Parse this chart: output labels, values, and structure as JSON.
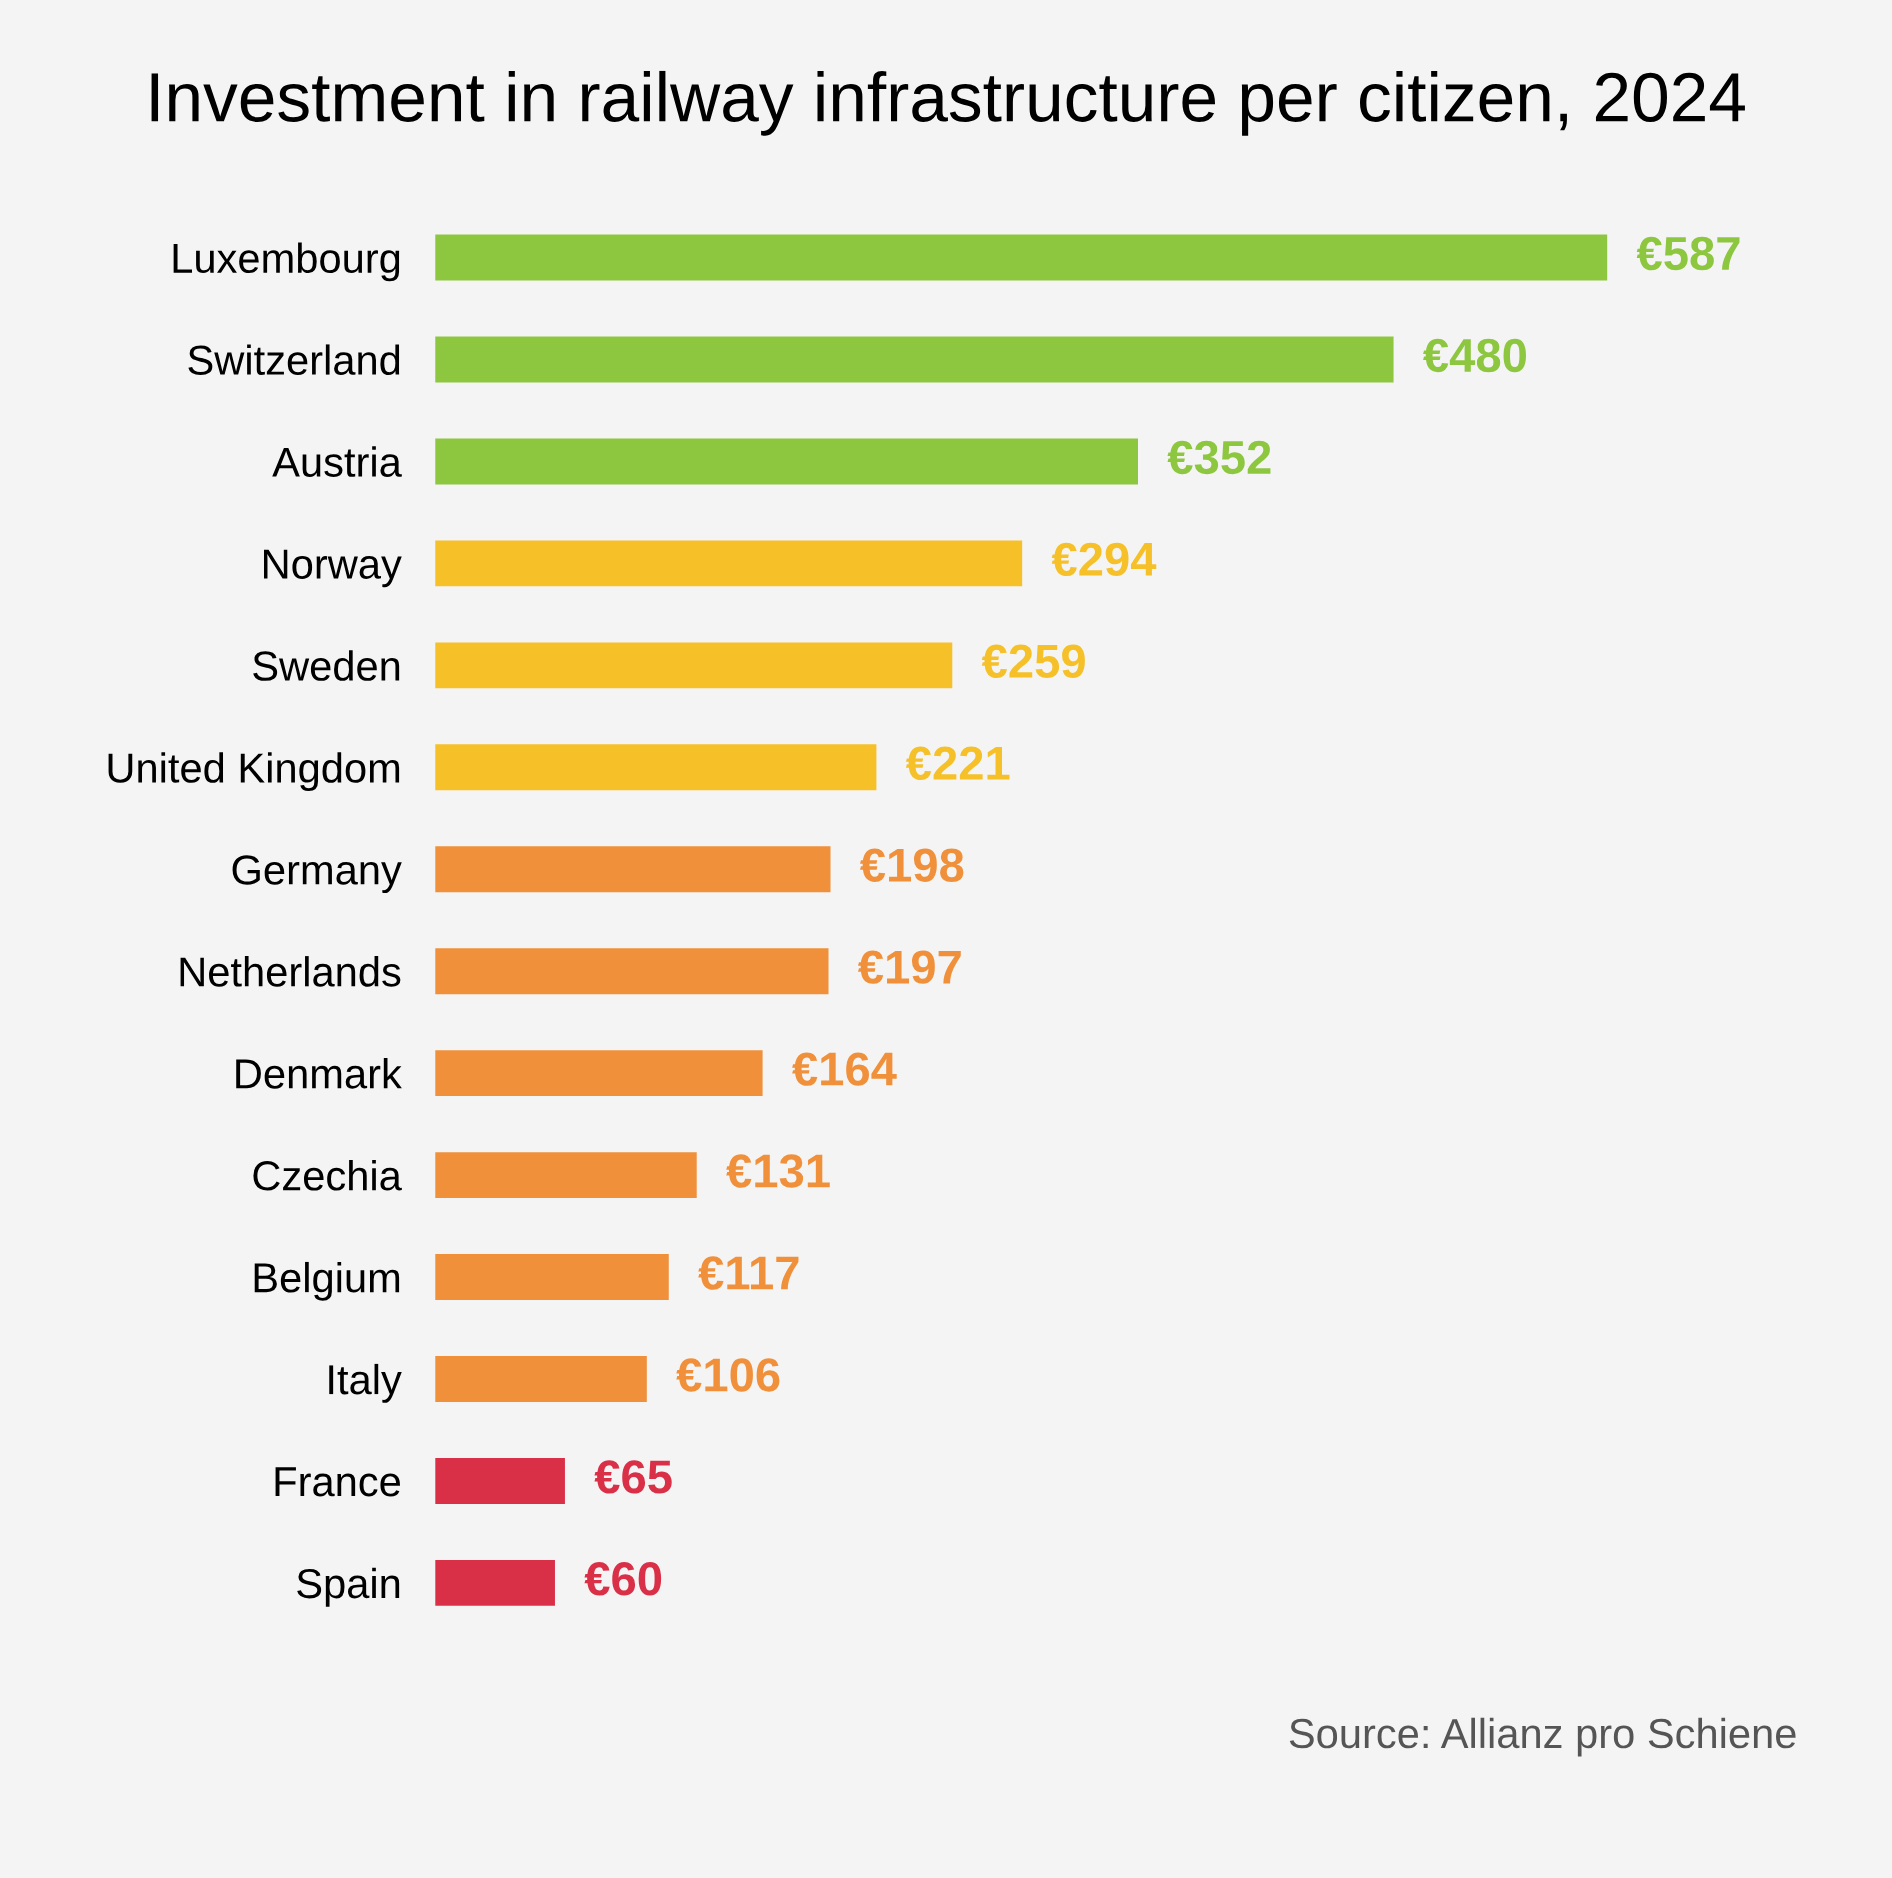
{
  "chart_data": {
    "type": "bar",
    "orientation": "horizontal",
    "title": "Investment in railway infrastructure per citizen, 2024",
    "categories": [
      "Luxembourg",
      "Switzerland",
      "Austria",
      "Norway",
      "Sweden",
      "United Kingdom",
      "Germany",
      "Netherlands",
      "Denmark",
      "Czechia",
      "Belgium",
      "Italy",
      "France",
      "Spain"
    ],
    "values": [
      587,
      480,
      352,
      294,
      259,
      221,
      198,
      197,
      164,
      131,
      117,
      106,
      65,
      60
    ],
    "colors": [
      "#8dc63f",
      "#8dc63f",
      "#8dc63f",
      "#f5c028",
      "#f5c028",
      "#f5c028",
      "#f0903a",
      "#f0903a",
      "#f0903a",
      "#f0903a",
      "#f0903a",
      "#f0903a",
      "#d93048",
      "#d93048"
    ],
    "value_labels": [
      "€587",
      "€480",
      "€352",
      "€294",
      "€259",
      "€221",
      "€198",
      "€197",
      "€164",
      "€131",
      "€117",
      "€106",
      "€65",
      "€60"
    ],
    "annotations": [
      "Source: Allianz pro Schiene"
    ],
    "grid": false,
    "legend": false
  }
}
